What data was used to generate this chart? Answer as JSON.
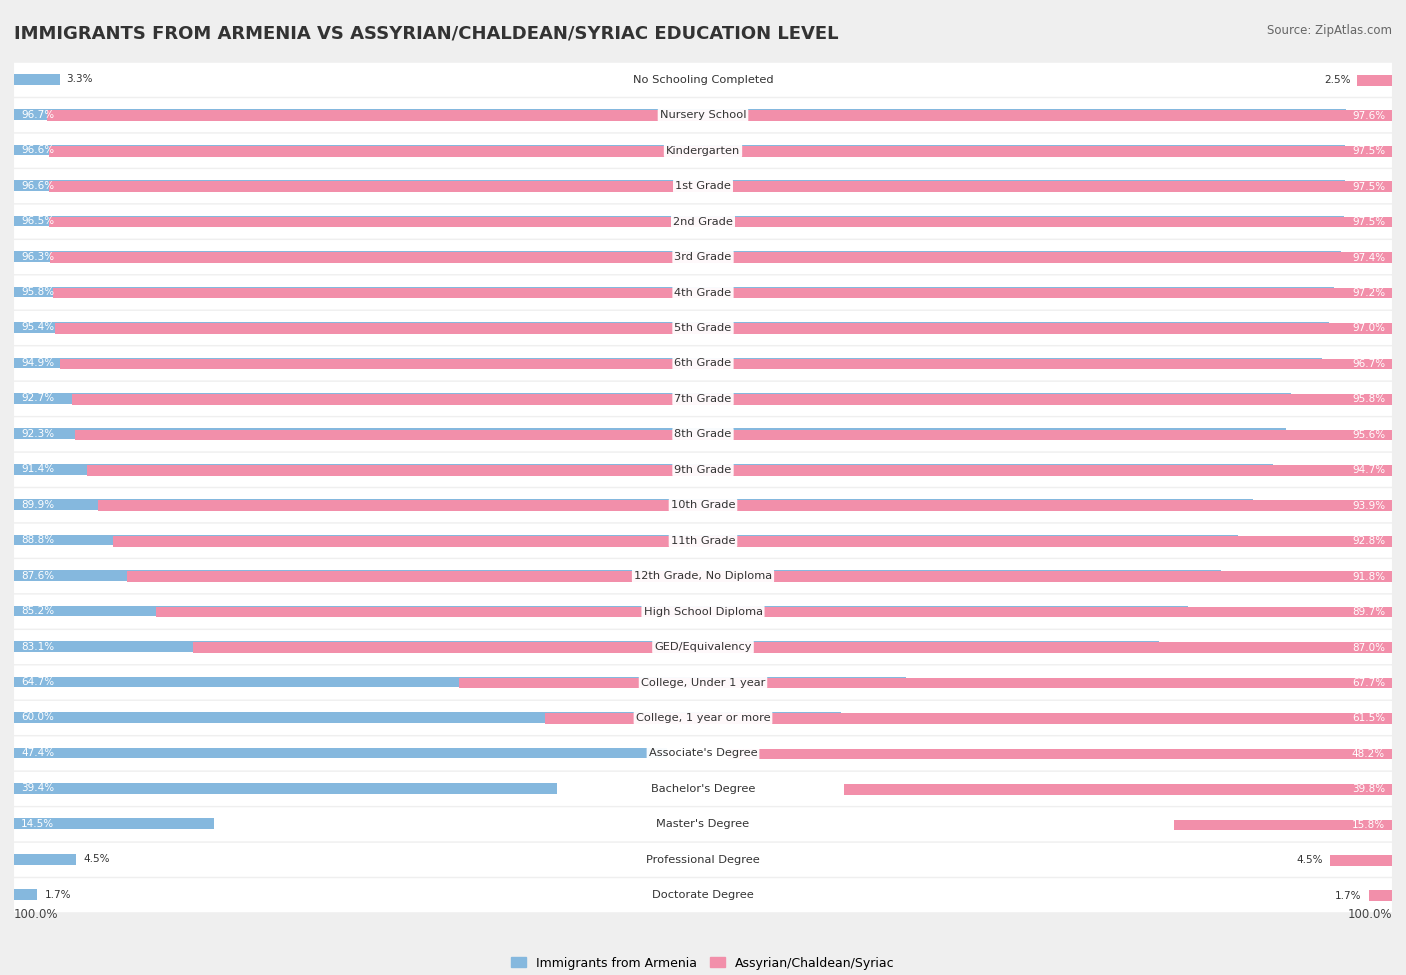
{
  "title": "IMMIGRANTS FROM ARMENIA VS ASSYRIAN/CHALDEAN/SYRIAC EDUCATION LEVEL",
  "source": "Source: ZipAtlas.com",
  "categories": [
    "No Schooling Completed",
    "Nursery School",
    "Kindergarten",
    "1st Grade",
    "2nd Grade",
    "3rd Grade",
    "4th Grade",
    "5th Grade",
    "6th Grade",
    "7th Grade",
    "8th Grade",
    "9th Grade",
    "10th Grade",
    "11th Grade",
    "12th Grade, No Diploma",
    "High School Diploma",
    "GED/Equivalency",
    "College, Under 1 year",
    "College, 1 year or more",
    "Associate's Degree",
    "Bachelor's Degree",
    "Master's Degree",
    "Professional Degree",
    "Doctorate Degree"
  ],
  "armenia_values": [
    3.3,
    96.7,
    96.6,
    96.6,
    96.5,
    96.3,
    95.8,
    95.4,
    94.9,
    92.7,
    92.3,
    91.4,
    89.9,
    88.8,
    87.6,
    85.2,
    83.1,
    64.7,
    60.0,
    47.4,
    39.4,
    14.5,
    4.5,
    1.7
  ],
  "assyrian_values": [
    2.5,
    97.6,
    97.5,
    97.5,
    97.5,
    97.4,
    97.2,
    97.0,
    96.7,
    95.8,
    95.6,
    94.7,
    93.9,
    92.8,
    91.8,
    89.7,
    87.0,
    67.7,
    61.5,
    48.2,
    39.8,
    15.8,
    4.5,
    1.7
  ],
  "armenia_color": "#85b8de",
  "assyrian_color": "#f28faa",
  "background_color": "#efefef",
  "row_bg_color": "#ffffff",
  "title_fontsize": 13,
  "legend_label_armenia": "Immigrants from Armenia",
  "legend_label_assyrian": "Assyrian/Chaldean/Syriac"
}
